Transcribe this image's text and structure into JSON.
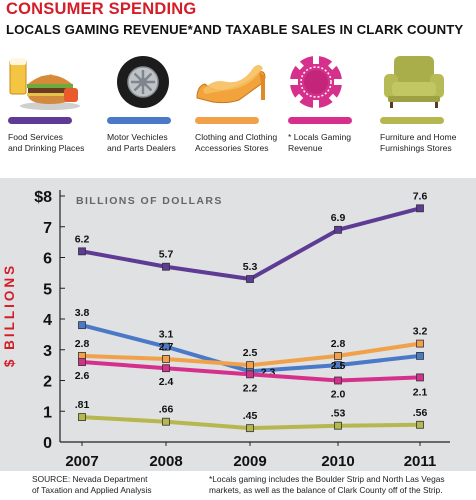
{
  "header": {
    "kicker": "CONSUMER SPENDING",
    "title": "LOCALS GAMING REVENUE*AND TAXABLE SALES IN CLARK COUNTY"
  },
  "legend": [
    {
      "icon": "burger-fries-beer-icon",
      "label_1": "Food Services",
      "label_2": "and Drinking Places",
      "color": "#5e3b94"
    },
    {
      "icon": "tire-icon",
      "label_1": "Motor Vechicles",
      "label_2": "and Parts Dealers",
      "color": "#4a79c7"
    },
    {
      "icon": "high-heel-shoe-icon",
      "label_1": "Clothing and Clothing",
      "label_2": "Accessories Stores",
      "color": "#f0a14a"
    },
    {
      "icon": "casino-chip-icon",
      "label_1": "* Locals Gaming",
      "label_2": "Revenue",
      "color": "#d6308d"
    },
    {
      "icon": "armchair-icon",
      "label_1": "Furniture and Home",
      "label_2": "Furnishings Stores",
      "color": "#b6b74f"
    }
  ],
  "chart_data": {
    "type": "line",
    "subtitle": "BILLIONS OF DOLLARS",
    "ylabel": "$ BILLIONS",
    "x": [
      "2007",
      "2008",
      "2009",
      "2010",
      "2011"
    ],
    "ylim": [
      0,
      8
    ],
    "yticks": [
      "0",
      "1",
      "2",
      "3",
      "4",
      "5",
      "6",
      "7",
      "$8"
    ],
    "grid": false,
    "series": [
      {
        "name": "Food Services and Drinking Places",
        "color": "#5e3b94",
        "values": [
          6.2,
          5.7,
          5.3,
          6.9,
          7.6
        ],
        "labels": [
          "6.2",
          "5.7",
          "5.3",
          "6.9",
          "7.6"
        ]
      },
      {
        "name": "Motor Vechicles and Parts Dealers",
        "color": "#4a79c7",
        "values": [
          3.8,
          3.1,
          2.3,
          2.5,
          2.8
        ],
        "labels": [
          "3.8",
          "3.1",
          "2.3",
          "2.5",
          ""
        ]
      },
      {
        "name": "Clothing and Clothing Accessories Stores",
        "color": "#f0a14a",
        "values": [
          2.8,
          2.7,
          2.5,
          2.8,
          3.2
        ],
        "labels": [
          "2.8",
          "2.7",
          "2.5",
          "2.8",
          "3.2"
        ]
      },
      {
        "name": "* Locals Gaming Revenue",
        "color": "#d6308d",
        "values": [
          2.6,
          2.4,
          2.2,
          2.0,
          2.1
        ],
        "labels": [
          "2.6",
          "2.4",
          "2.2",
          "2.0",
          "2.1"
        ]
      },
      {
        "name": "Furniture and Home Furnishings Stores",
        "color": "#b6b74f",
        "values": [
          0.81,
          0.66,
          0.45,
          0.53,
          0.56
        ],
        "labels": [
          ".81",
          ".66",
          ".45",
          ".53",
          ".56"
        ]
      }
    ]
  },
  "footer": {
    "source_1": "SOURCE: Nevada Department",
    "source_2": "of Taxation and Applied Analysis",
    "note_1": "*Locals gaming includes the Boulder Strip and North Las Vegas",
    "note_2": "markets, as well as the balance of Clark County off of the Strip."
  }
}
